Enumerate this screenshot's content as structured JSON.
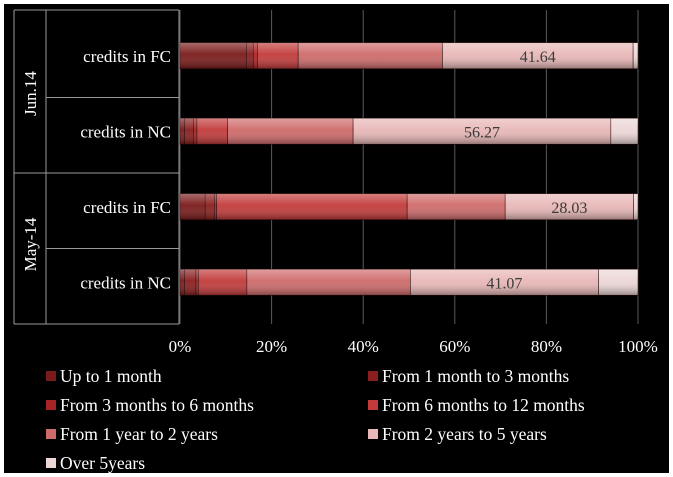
{
  "chart_data": {
    "type": "bar",
    "orientation": "horizontal",
    "stacked": "100%",
    "groups": [
      {
        "label": "Jun.14",
        "categories": [
          "credits in FC",
          "credits in NC"
        ]
      },
      {
        "label": "May-14",
        "categories": [
          "credits in FC",
          "credits in NC"
        ]
      }
    ],
    "categories": [
      "credits in FC",
      "credits in NC",
      "credits in FC",
      "credits in NC"
    ],
    "series": [
      {
        "name": "Up to 1 month",
        "color": "#7a1a1a",
        "values": [
          14.5,
          1.0,
          5.5,
          1.0
        ]
      },
      {
        "name": "From 1 month to 3 months",
        "color": "#8a1e1e",
        "values": [
          1.5,
          2.0,
          2.0,
          2.5
        ]
      },
      {
        "name": "From 3 months to 6 months",
        "color": "#a82424",
        "values": [
          0.9,
          0.7,
          0.5,
          0.5
        ]
      },
      {
        "name": "From 6 months to 12 months",
        "color": "#c23a3a",
        "values": [
          8.9,
          6.7,
          41.6,
          10.6
        ]
      },
      {
        "name": "From 1 year to 2 years",
        "color": "#cf6a6a",
        "values": [
          31.5,
          27.4,
          21.4,
          35.7
        ]
      },
      {
        "name": "From 2 years to 5 years",
        "color": "#e8b7b7",
        "values": [
          41.64,
          56.27,
          28.03,
          41.07
        ]
      },
      {
        "name": "Over 5years",
        "color": "#ecd6d6",
        "values": [
          1.06,
          5.93,
          0.97,
          8.63
        ]
      }
    ],
    "data_labels": [
      "41.64",
      "56.27",
      "28.03",
      "41.07"
    ],
    "x_ticks": [
      "0%",
      "20%",
      "40%",
      "60%",
      "80%",
      "100%"
    ],
    "xlim": [
      0,
      100
    ],
    "grid": true,
    "legend_position": "bottom"
  }
}
